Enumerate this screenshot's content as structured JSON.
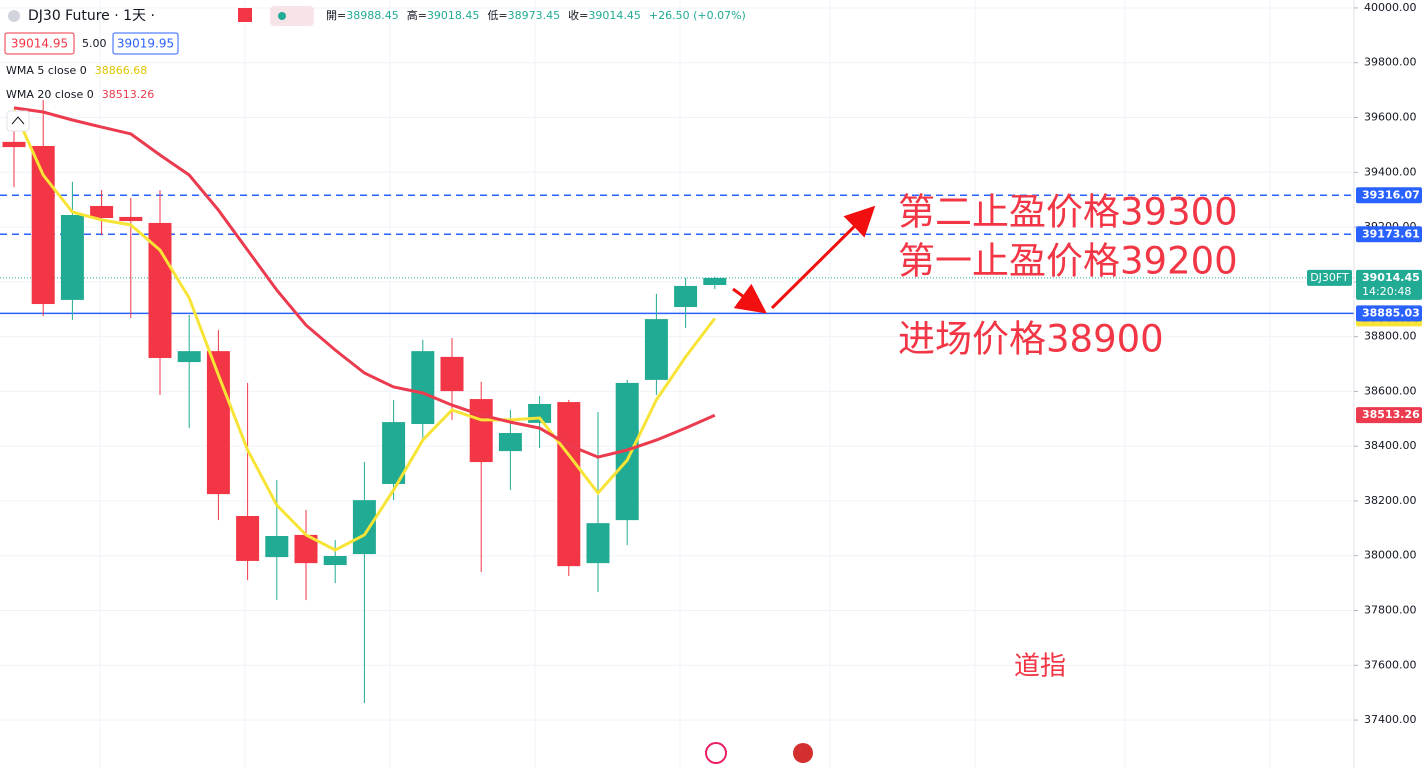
{
  "chart_data": {
    "type": "candlestick",
    "title": "DJ30 Future · 1天 ·",
    "stats": [
      {
        "label": "開=",
        "value": "38988.45"
      },
      {
        "label": "高=",
        "value": "39018.45"
      },
      {
        "label": "低=",
        "value": "38973.45"
      },
      {
        "label": "收=",
        "value": "39014.45"
      },
      {
        "label": "",
        "value": "+26.50 (+0.07%)"
      }
    ],
    "quote": {
      "bid": "39014.95",
      "spread": "5.00",
      "ask": "39019.95"
    },
    "up_color": "#22ab94",
    "down_color": "#f23645",
    "open": [
      39511,
      39496,
      38934,
      39277,
      39237,
      39215,
      38707,
      38747,
      38145,
      37995,
      38076,
      37966,
      38006,
      38262,
      38481,
      38726,
      38572,
      38382,
      38485,
      38561,
      37973,
      38130,
      38642,
      38908,
      38988.45
    ],
    "high": [
      39598,
      39664,
      39365,
      39335,
      39306,
      39335,
      38879,
      38824,
      38631,
      38276,
      38167,
      38057,
      38342,
      38569,
      38788,
      38795,
      38635,
      38532,
      38583,
      38569,
      38525,
      38642,
      38956,
      39014,
      39018.45
    ],
    "low": [
      39346,
      38875,
      38861,
      39171,
      38868,
      38587,
      38466,
      38130,
      37911,
      37838,
      37838,
      37900,
      37462,
      38203,
      38430,
      38496,
      37940,
      38240,
      38393,
      37926,
      37867,
      38039,
      38587,
      38831,
      38973.45
    ],
    "close": [
      39492,
      38919,
      39244,
      39233,
      39222,
      38722,
      38747,
      38225,
      37981,
      38072,
      37973,
      37999,
      38203,
      38488,
      38747,
      38601,
      38342,
      38448,
      38554,
      37962,
      38119,
      38631,
      38864,
      38985,
      39014.45
    ],
    "series": [
      {
        "name": "WMA 5 close 0",
        "color": "#f7e436",
        "values": [
          39628,
          39390,
          39255,
          39226,
          39208,
          39116,
          38941,
          38660,
          38386,
          38185,
          38076,
          38021,
          38076,
          38240,
          38422,
          38532,
          38496,
          38496,
          38503,
          38368,
          38229,
          38349,
          38569,
          38726,
          38866.68
        ]
      },
      {
        "name": "WMA 20 close 0",
        "color": "#ec3a4e",
        "values": [
          39635,
          39620,
          39591,
          39565,
          39540,
          39463,
          39390,
          39262,
          39116,
          38970,
          38842,
          38751,
          38667,
          38616,
          38594,
          38550,
          38514,
          38488,
          38466,
          38404,
          38360,
          38386,
          38422,
          38466,
          38513.26
        ]
      }
    ],
    "price_lines": [
      {
        "value": 39316.07,
        "style": "dashed",
        "color": "#2962ff"
      },
      {
        "value": 39173.61,
        "style": "dashed",
        "color": "#2962ff"
      },
      {
        "value": 38885.03,
        "style": "solid",
        "color": "#2962ff"
      }
    ],
    "last_price": {
      "symbol": "DJ30FT",
      "value": 39014.45,
      "countdown": "14:20:48",
      "color": "#22ab94"
    },
    "annotations": [
      "第二止盈价格39300",
      "第一止盈价格39200",
      "进场价格38900",
      "道指"
    ],
    "ylim": [
      37225,
      40029
    ],
    "yticks": [
      {
        "value": 37400,
        "label": "37400.00"
      },
      {
        "value": 37600,
        "label": "37600.00"
      },
      {
        "value": 37800,
        "label": "37800.00"
      },
      {
        "value": 38000,
        "label": "38000.00"
      },
      {
        "value": 38200,
        "label": "38200.00"
      },
      {
        "value": 38400,
        "label": "38400.00"
      },
      {
        "value": 38600,
        "label": "38600.00"
      },
      {
        "value": 38800,
        "label": "38800.00"
      },
      {
        "value": 39000,
        "label": "39000.00"
      },
      {
        "value": 39200,
        "label": "39200.00"
      },
      {
        "value": 39400,
        "label": "39400.00"
      },
      {
        "value": 39600,
        "label": "39600.00"
      },
      {
        "value": 39800,
        "label": "39800.00"
      },
      {
        "value": 40000,
        "label": "40000.00"
      }
    ],
    "grid": true
  }
}
